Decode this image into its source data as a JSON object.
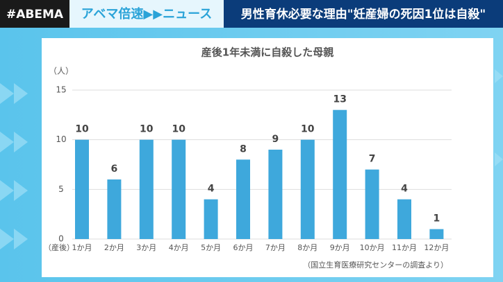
{
  "header": {
    "brand": "#ABEMA",
    "program": "アベマ倍速▶▶ニュース",
    "headline": "男性育休必要な理由\"妊産婦の死因1位は自殺\""
  },
  "chart_data": {
    "type": "bar",
    "title": "産後1年未満に自殺した母親",
    "ylabel": "（人）",
    "xlabel": "（産後）",
    "source": "（国立生育医療研究センターの調査より）",
    "categories": [
      "1か月",
      "2か月",
      "3か月",
      "4か月",
      "5か月",
      "6か月",
      "7か月",
      "8か月",
      "9か月",
      "10か月",
      "11か月",
      "12か月"
    ],
    "values": [
      10,
      6,
      10,
      10,
      4,
      8,
      9,
      10,
      13,
      7,
      4,
      1
    ],
    "color": "#3ea8dc",
    "ylim": [
      0,
      15
    ],
    "yticks": [
      0,
      5,
      10,
      15
    ],
    "grid": true
  }
}
